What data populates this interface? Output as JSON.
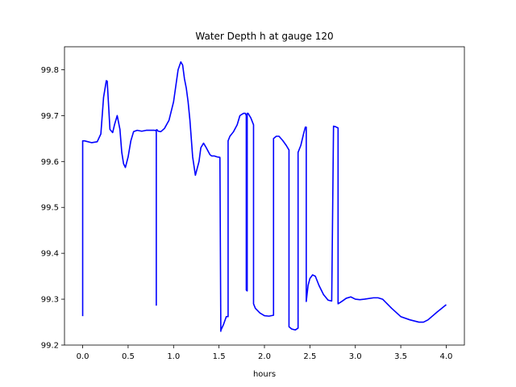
{
  "chart_data": {
    "type": "line",
    "title": "Water Depth h at gauge 120",
    "xlabel": "hours",
    "ylabel": "",
    "xlim": [
      -0.2,
      4.2
    ],
    "ylim": [
      99.2,
      99.85
    ],
    "x_ticks": [
      0.0,
      0.5,
      1.0,
      1.5,
      2.0,
      2.5,
      3.0,
      3.5,
      4.0
    ],
    "x_tick_labels": [
      "0.0",
      "0.5",
      "1.0",
      "1.5",
      "2.0",
      "2.5",
      "3.0",
      "3.5",
      "4.0"
    ],
    "y_ticks": [
      99.2,
      99.3,
      99.4,
      99.5,
      99.6,
      99.7,
      99.8
    ],
    "y_tick_labels": [
      "99.2",
      "99.3",
      "99.4",
      "99.5",
      "99.6",
      "99.7",
      "99.8"
    ],
    "grid": false,
    "legend": "none",
    "series": [
      {
        "color": "#0000ff",
        "x": [
          0.0,
          0.0,
          0.02,
          0.1,
          0.16,
          0.2,
          0.23,
          0.26,
          0.27,
          0.28,
          0.3,
          0.33,
          0.35,
          0.38,
          0.41,
          0.43,
          0.45,
          0.47,
          0.5,
          0.53,
          0.56,
          0.6,
          0.65,
          0.7,
          0.75,
          0.79,
          0.81,
          0.81,
          0.81,
          0.82,
          0.82,
          0.83,
          0.86,
          0.9,
          0.95,
          1.0,
          1.05,
          1.08,
          1.1,
          1.12,
          1.14,
          1.16,
          1.18,
          1.21,
          1.24,
          1.28,
          1.3,
          1.33,
          1.36,
          1.4,
          1.42,
          1.45,
          1.48,
          1.51,
          1.52,
          1.52,
          1.55,
          1.58,
          1.6,
          1.6,
          1.62,
          1.66,
          1.7,
          1.73,
          1.77,
          1.79,
          1.8,
          1.8,
          1.81,
          1.81,
          1.82,
          1.85,
          1.88,
          1.88,
          1.9,
          1.95,
          2.0,
          2.05,
          2.1,
          2.1,
          2.13,
          2.16,
          2.2,
          2.24,
          2.27,
          2.27,
          2.3,
          2.34,
          2.37,
          2.37,
          2.4,
          2.43,
          2.45,
          2.46,
          2.46,
          2.48,
          2.5,
          2.53,
          2.56,
          2.6,
          2.65,
          2.7,
          2.74,
          2.76,
          2.76,
          2.78,
          2.81,
          2.81,
          2.85,
          2.9,
          2.95,
          3.0,
          3.05,
          3.1,
          3.2,
          3.25,
          3.3,
          3.4,
          3.5,
          3.6,
          3.7,
          3.75,
          3.8,
          3.9,
          4.0
        ],
        "y": [
          99.263,
          99.645,
          99.645,
          99.641,
          99.643,
          99.66,
          99.74,
          99.776,
          99.775,
          99.74,
          99.67,
          99.663,
          99.68,
          99.7,
          99.67,
          99.62,
          99.595,
          99.587,
          99.61,
          99.645,
          99.665,
          99.668,
          99.666,
          99.668,
          99.668,
          99.668,
          99.667,
          99.287,
          99.669,
          99.669,
          99.669,
          99.666,
          99.665,
          99.672,
          99.69,
          99.73,
          99.8,
          99.817,
          99.81,
          99.78,
          99.76,
          99.73,
          99.69,
          99.61,
          99.57,
          99.6,
          99.63,
          99.64,
          99.63,
          99.615,
          99.612,
          99.612,
          99.61,
          99.609,
          99.23,
          99.232,
          99.245,
          99.262,
          99.262,
          99.645,
          99.655,
          99.665,
          99.68,
          99.7,
          99.705,
          99.705,
          99.7,
          99.32,
          99.318,
          99.705,
          99.705,
          99.695,
          99.68,
          99.29,
          99.28,
          99.27,
          99.264,
          99.263,
          99.265,
          99.65,
          99.655,
          99.655,
          99.646,
          99.635,
          99.625,
          99.24,
          99.235,
          99.233,
          99.237,
          99.62,
          99.635,
          99.66,
          99.675,
          99.675,
          99.295,
          99.33,
          99.345,
          99.353,
          99.35,
          99.33,
          99.31,
          99.298,
          99.296,
          99.677,
          99.677,
          99.676,
          99.673,
          99.29,
          99.295,
          99.302,
          99.305,
          99.3,
          99.299,
          99.3,
          99.303,
          99.303,
          99.3,
          99.28,
          99.262,
          99.255,
          99.25,
          99.25,
          99.255,
          99.272,
          99.288
        ]
      }
    ]
  }
}
